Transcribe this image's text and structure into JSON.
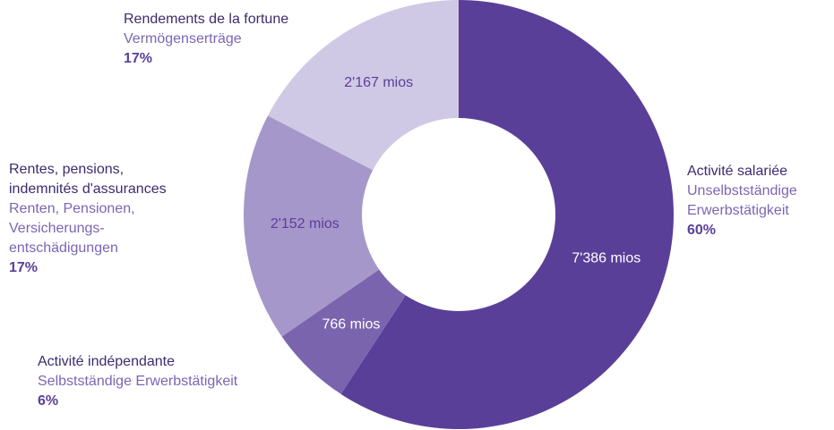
{
  "chart_data": {
    "type": "donut",
    "categories_fr": [
      [
        "Activité salariée"
      ],
      [
        "Activité indépendante"
      ],
      [
        "Rentes, pensions,",
        "indemnités d'assurances"
      ],
      [
        "Rendements de la fortune"
      ]
    ],
    "categories_de": [
      [
        "Unselbstständige",
        "Erwerbstätigkeit"
      ],
      [
        "Selbstständige Erwerbstätigkeit"
      ],
      [
        "Renten, Pensionen,",
        "Versicherungs-",
        "entschädigungen"
      ],
      [
        "Vermögenserträge"
      ]
    ],
    "values": [
      7386,
      766,
      2152,
      2167
    ],
    "value_labels": [
      "7'386 mios",
      "766 mios",
      "2'152 mios",
      "2'167 mios"
    ],
    "share_labels": [
      "60%",
      "6%",
      "17%",
      "17%"
    ],
    "colors": [
      "#5a3f99",
      "#7b64ae",
      "#a697cb",
      "#d0c9e5"
    ]
  }
}
